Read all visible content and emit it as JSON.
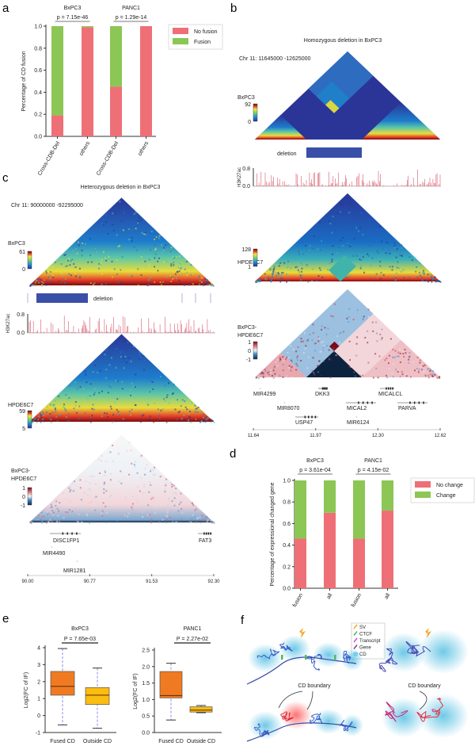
{
  "colors": {
    "no": "#ef6f76",
    "yes": "#8cc654",
    "fusedBox": "#f07a21",
    "outsideBox": "#fbbd12",
    "whisker": "#8a8ee0",
    "deletion": "#3a4fa8",
    "track": "#c8102e"
  },
  "panel_labels": [
    "a",
    "b",
    "c",
    "d",
    "e",
    "f"
  ],
  "chart_data": [
    {
      "id": "a",
      "type": "bar",
      "stacked": true,
      "ylabel": "Percentage of CD fusion",
      "ylim": [
        0,
        1.0
      ],
      "yticks": [
        "0.0",
        "0.2",
        "0.4",
        "0.6",
        "0.8",
        "1.0"
      ],
      "categories": [
        "Cross-CDB-Del",
        "others",
        "Cross-CDB-Del",
        "others"
      ],
      "groups": [
        {
          "name": "BxPC3",
          "p": "p = 7.15e-46"
        },
        {
          "name": "PANC1",
          "p": "p = 1.29e-14"
        }
      ],
      "series": [
        {
          "name": "No fusion",
          "values": [
            0.19,
            0.99,
            0.45,
            1.0
          ]
        },
        {
          "name": "Fusion",
          "values": [
            0.81,
            0.01,
            0.55,
            0.0
          ]
        }
      ],
      "legend": "right"
    },
    {
      "id": "d",
      "type": "bar",
      "stacked": true,
      "ylabel": "Percentage of expressional changed gene",
      "ylim": [
        0,
        1.0
      ],
      "yticks": [
        "0.0",
        "0.2",
        "0.4",
        "0.6",
        "0.8",
        "1.0"
      ],
      "categories": [
        "fusion",
        "all",
        "fusion",
        "all"
      ],
      "groups": [
        {
          "name": "BxPC3",
          "p": "p = 3.61e-04"
        },
        {
          "name": "PANC1",
          "p": "p = 4.15e-02"
        }
      ],
      "series": [
        {
          "name": "No change",
          "values": [
            0.46,
            0.7,
            0.46,
            0.72
          ]
        },
        {
          "name": "Change",
          "values": [
            0.54,
            0.3,
            0.54,
            0.28
          ]
        }
      ],
      "legend": "right"
    },
    {
      "id": "e1",
      "type": "box",
      "title": "BxPC3",
      "p": "P = 7.65e-03",
      "ylabel": "Log2(FC of IF)",
      "ylim": [
        -1,
        4
      ],
      "yticks": [
        "-1",
        "0",
        "1",
        "2",
        "3",
        "4"
      ],
      "categories": [
        "Fused CD",
        "Outside CD"
      ],
      "boxes": [
        {
          "min": -0.55,
          "q1": 1.2,
          "median": 1.72,
          "q3": 2.6,
          "max": 3.95
        },
        {
          "min": -0.75,
          "q1": 0.65,
          "median": 1.2,
          "q3": 1.65,
          "max": 2.8
        }
      ]
    },
    {
      "id": "e2",
      "type": "box",
      "title": "PANC1",
      "p": "P = 2.27e-02",
      "ylabel": "Log2(FC of IF)",
      "ylim": [
        0,
        2.5
      ],
      "yticks": [
        "0.0",
        "0.5",
        "1.0",
        "1.5",
        "2.0",
        "2.5"
      ],
      "categories": [
        "Fused CD",
        "Outside CD"
      ],
      "boxes": [
        {
          "min": 0.38,
          "q1": 1.05,
          "median": 1.12,
          "q3": 1.85,
          "max": 2.1
        },
        {
          "min": 0.6,
          "q1": 0.62,
          "median": 0.68,
          "q3": 0.78,
          "max": 0.82
        }
      ]
    }
  ],
  "b": {
    "title": "Homozygous deletion in BxPC3",
    "region": "Chr 11: 11645000 -12625000",
    "maps": [
      {
        "label": "BxPC3",
        "scale": [
          "92",
          "0"
        ]
      },
      {
        "label": "HPDE6C7",
        "scale": [
          "128",
          "1"
        ]
      },
      {
        "label": "BxPC3-\nHPDE6C7",
        "label1": "BxPC3-",
        "label2": "HPDE6C7",
        "scale": [
          "1",
          "0",
          "-1"
        ]
      }
    ],
    "deletion_label": "deletion",
    "track_label": "H3K27ac",
    "track_ticks": [
      "0.8",
      "0.0"
    ],
    "genes": [
      "MIR4299",
      "DKK3",
      "MICALCL",
      "MIR8070",
      "MICAL2",
      "PARVA",
      "USP47",
      "MIR6124"
    ],
    "xticks": [
      "11.64",
      "11.97",
      "12.30",
      "12.62"
    ]
  },
  "c": {
    "title": "Heterozygous deletion in BxPC3",
    "region": "Chr 11: 90000000 -92295000",
    "maps": [
      {
        "label": "BxPC3",
        "scale": [
          "61",
          "0"
        ]
      },
      {
        "label": "HPDE6C7",
        "scale": [
          "59",
          "5"
        ]
      },
      {
        "label1": "BxPC3-",
        "label2": "HPDE6C7",
        "scale": [
          "1",
          "0",
          "-1"
        ]
      }
    ],
    "deletion_label": "deletion",
    "track_label": "H3K27ac",
    "track_ticks": [
      "0.8",
      "0.0"
    ],
    "genes": [
      "DISC1FP1",
      "FAT3",
      "MIR4490",
      "MIR1281"
    ],
    "xticks": [
      "90.00",
      "90.77",
      "91.53",
      "92.30"
    ]
  },
  "f": {
    "legend": [
      "SV",
      "CTCF",
      "Transcript",
      "Gene",
      "CD"
    ],
    "boundary_label": "CD boundary"
  }
}
